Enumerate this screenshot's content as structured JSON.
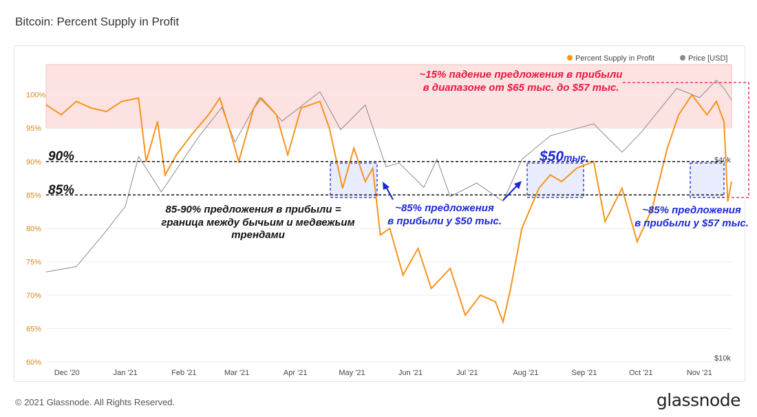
{
  "title": "Bitcoin: Percent Supply in Profit",
  "footer": "© 2021 Glassnode. All Rights Reserved.",
  "logo": "glassnode",
  "colors": {
    "supply": "#f7931a",
    "price": "#8a8a8a",
    "band": "#fde2e2",
    "accent_red": "#e8173f",
    "accent_blue": "#1b28d6",
    "box_fill": "#d6ddf9"
  },
  "legend": [
    {
      "label": "Percent Supply in Profit",
      "color": "#f7931a"
    },
    {
      "label": "Price [USD]",
      "color": "#8a8a8a"
    }
  ],
  "annotations": {
    "red_line1": "~15% падение предложения в прибыли",
    "red_line2": "в диапазоне от $65 тыс. до $57 тыс.",
    "level90": "90%",
    "level85": "85%",
    "bear_line1": "85-90% предложения в прибыли =",
    "bear_line2": "граница между бычьим и медвежьим",
    "bear_line3": "трендами",
    "mid_line1": "~85% предложения",
    "mid_line2": "в прибыли у $50 тыс.",
    "fifty_big": "$50",
    "fifty_small": "тыс.",
    "right_line1": "~85% предложения",
    "right_line2": "в прибыли у $57 тыс."
  },
  "chart_data": {
    "type": "line",
    "xlabel": "",
    "ylabel": "",
    "y_ticks": [
      "100%",
      "95%",
      "90%",
      "85%",
      "80%",
      "75%",
      "70%",
      "65%",
      "60%"
    ],
    "ylim": [
      60,
      104.5
    ],
    "right_ticks": [
      "$40k",
      "$10k"
    ],
    "x_ticks": [
      "Dec '20",
      "Jan '21",
      "Feb '21",
      "Mar '21",
      "Apr '21",
      "May '21",
      "Jun '21",
      "Jul '21",
      "Aug '21",
      "Sep '21",
      "Oct '21",
      "Nov '21"
    ],
    "x_dates": [
      "2020-12-01",
      "2021-01-01",
      "2021-02-01",
      "2021-03-01",
      "2021-04-01",
      "2021-05-01",
      "2021-06-01",
      "2021-07-01",
      "2021-08-01",
      "2021-09-01",
      "2021-10-01",
      "2021-11-01"
    ],
    "x_range": [
      "2020-11-20",
      "2021-11-18"
    ],
    "highlight_band": [
      95,
      104.5
    ],
    "levels": [
      90,
      85
    ],
    "series": [
      {
        "name": "Percent Supply in Profit",
        "dates": [
          "2020-11-20",
          "2020-11-28",
          "2020-12-06",
          "2020-12-14",
          "2020-12-22",
          "2020-12-30",
          "2021-01-08",
          "2021-01-12",
          "2021-01-18",
          "2021-01-22",
          "2021-01-28",
          "2021-02-05",
          "2021-02-14",
          "2021-02-20",
          "2021-02-25",
          "2021-03-02",
          "2021-03-10",
          "2021-03-14",
          "2021-03-22",
          "2021-03-28",
          "2021-04-04",
          "2021-04-14",
          "2021-04-19",
          "2021-04-26",
          "2021-05-02",
          "2021-05-08",
          "2021-05-12",
          "2021-05-16",
          "2021-05-21",
          "2021-05-28",
          "2021-06-05",
          "2021-06-12",
          "2021-06-22",
          "2021-06-30",
          "2021-07-08",
          "2021-07-16",
          "2021-07-20",
          "2021-07-24",
          "2021-07-30",
          "2021-08-08",
          "2021-08-14",
          "2021-08-20",
          "2021-08-28",
          "2021-09-06",
          "2021-09-12",
          "2021-09-21",
          "2021-09-29",
          "2021-10-07",
          "2021-10-15",
          "2021-10-21",
          "2021-10-28",
          "2021-11-05",
          "2021-11-10",
          "2021-11-14",
          "2021-11-16",
          "2021-11-18"
        ],
        "values": [
          98.5,
          97,
          99,
          98,
          97.5,
          99,
          99.5,
          90,
          96,
          88,
          91,
          94,
          97,
          99.5,
          95,
          90,
          98,
          99.5,
          97,
          91,
          98,
          99,
          95,
          86,
          92,
          87,
          89,
          79,
          80,
          73,
          77,
          71,
          74,
          67,
          70,
          69,
          66,
          71,
          80,
          86,
          88,
          87,
          89,
          90,
          81,
          86,
          78,
          83,
          92,
          97,
          100,
          97,
          99,
          96,
          84,
          87
        ]
      },
      {
        "name": "Price [USD]",
        "dates": [
          "2020-11-20",
          "2020-12-06",
          "2020-12-20",
          "2021-01-01",
          "2021-01-08",
          "2021-01-20",
          "2021-02-08",
          "2021-02-21",
          "2021-02-28",
          "2021-03-13",
          "2021-03-25",
          "2021-04-14",
          "2021-04-25",
          "2021-05-08",
          "2021-05-19",
          "2021-05-26",
          "2021-06-08",
          "2021-06-15",
          "2021-06-22",
          "2021-07-06",
          "2021-07-20",
          "2021-07-30",
          "2021-08-14",
          "2021-09-06",
          "2021-09-21",
          "2021-10-01",
          "2021-10-20",
          "2021-11-01",
          "2021-11-10",
          "2021-11-14",
          "2021-11-18"
        ],
        "values": [
          18500,
          19200,
          23800,
          29000,
          40800,
          32000,
          46000,
          57000,
          45000,
          61000,
          52000,
          63500,
          49000,
          58000,
          38000,
          39000,
          33000,
          40000,
          31000,
          34000,
          30000,
          40000,
          47000,
          51000,
          42000,
          48000,
          65000,
          61000,
          68700,
          65000,
          60000
        ]
      }
    ]
  }
}
